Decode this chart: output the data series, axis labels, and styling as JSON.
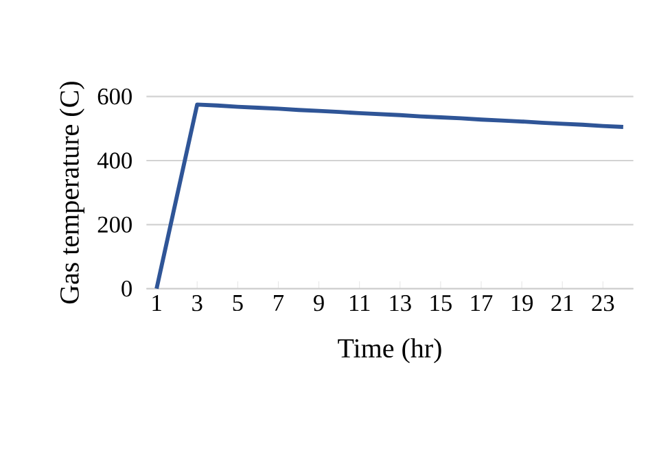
{
  "chart_data": {
    "type": "line",
    "xlabel": "Time (hr)",
    "ylabel": "Gas temperature (C)",
    "categories": [
      "1",
      null,
      "3",
      null,
      "5",
      null,
      "7",
      null,
      "9",
      null,
      "11",
      null,
      "13",
      null,
      "15",
      null,
      "17",
      null,
      "19",
      null,
      "21",
      null,
      "23",
      null
    ],
    "series": [
      {
        "color": "#2f5597",
        "values": [
          0,
          288,
          575,
          572,
          568,
          565,
          562,
          558,
          555,
          552,
          548,
          545,
          542,
          538,
          535,
          532,
          528,
          525,
          522,
          518,
          515,
          512,
          508,
          505
        ]
      }
    ],
    "ylim": [
      0,
      600
    ],
    "yticks": [
      0,
      200,
      400,
      600
    ],
    "grid": "y",
    "marker": "none",
    "line_style": "solid"
  }
}
